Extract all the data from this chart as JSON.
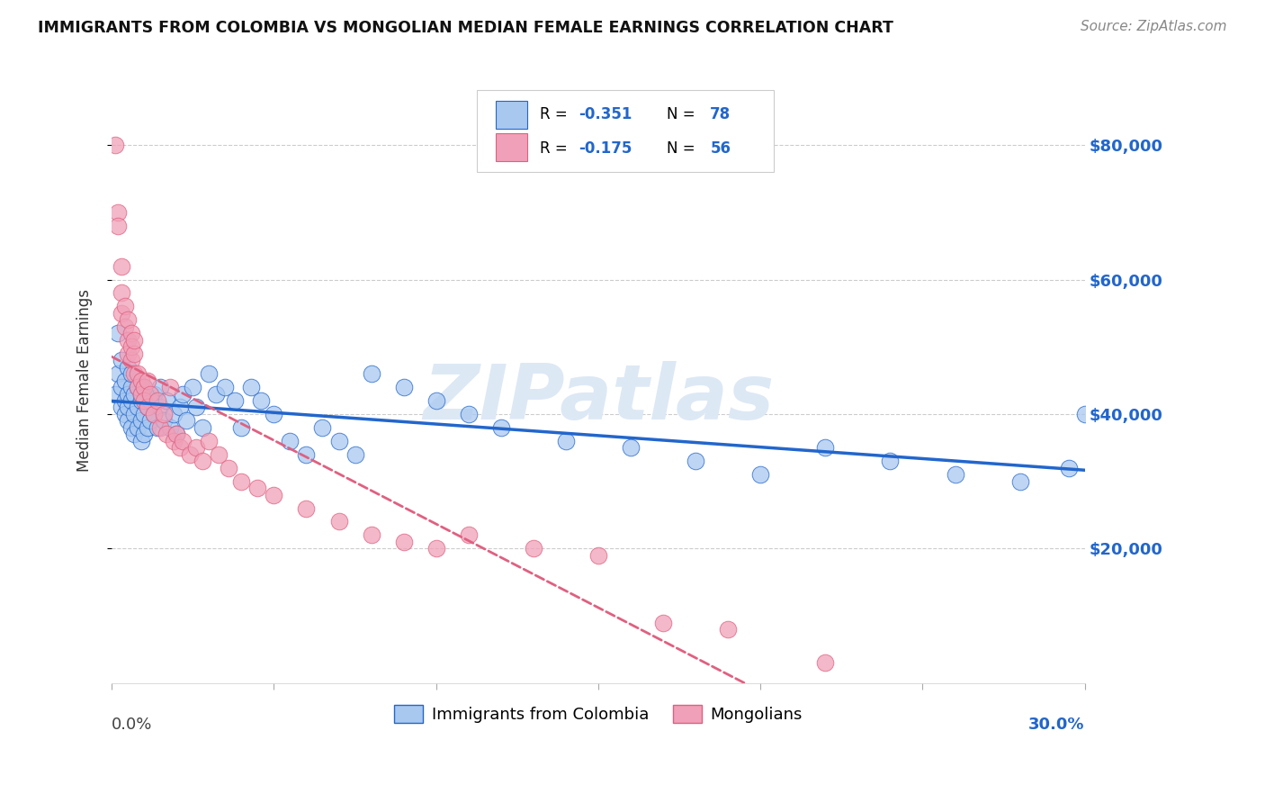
{
  "title": "IMMIGRANTS FROM COLOMBIA VS MONGOLIAN MEDIAN FEMALE EARNINGS CORRELATION CHART",
  "source": "Source: ZipAtlas.com",
  "ylabel": "Median Female Earnings",
  "yticks": [
    20000,
    40000,
    60000,
    80000
  ],
  "ytick_labels": [
    "$20,000",
    "$40,000",
    "$60,000",
    "$80,000"
  ],
  "xlim": [
    0.0,
    0.3
  ],
  "ylim": [
    0,
    90000
  ],
  "legend_label1": "Immigrants from Colombia",
  "legend_label2": "Mongolians",
  "R1": "-0.351",
  "N1": "78",
  "R2": "-0.175",
  "N2": "56",
  "color_colombia": "#a8c8f0",
  "color_mongolia": "#f0a0b8",
  "trendline_color_colombia": "#2266cc",
  "trendline_color_mongolia": "#e06080",
  "watermark": "ZIPatlas",
  "colombia_x": [
    0.001,
    0.002,
    0.002,
    0.003,
    0.003,
    0.003,
    0.004,
    0.004,
    0.004,
    0.005,
    0.005,
    0.005,
    0.005,
    0.006,
    0.006,
    0.006,
    0.006,
    0.007,
    0.007,
    0.007,
    0.008,
    0.008,
    0.008,
    0.009,
    0.009,
    0.009,
    0.009,
    0.01,
    0.01,
    0.01,
    0.011,
    0.011,
    0.012,
    0.012,
    0.013,
    0.013,
    0.014,
    0.015,
    0.015,
    0.016,
    0.017,
    0.018,
    0.019,
    0.02,
    0.021,
    0.022,
    0.023,
    0.025,
    0.026,
    0.028,
    0.03,
    0.032,
    0.035,
    0.038,
    0.04,
    0.043,
    0.046,
    0.05,
    0.055,
    0.06,
    0.065,
    0.07,
    0.075,
    0.08,
    0.09,
    0.1,
    0.11,
    0.12,
    0.14,
    0.16,
    0.18,
    0.2,
    0.22,
    0.24,
    0.26,
    0.28,
    0.295,
    0.3
  ],
  "colombia_y": [
    43000,
    46000,
    52000,
    41000,
    44000,
    48000,
    42000,
    45000,
    40000,
    43000,
    47000,
    39000,
    41000,
    44000,
    38000,
    42000,
    46000,
    43000,
    40000,
    37000,
    41000,
    38000,
    44000,
    42000,
    39000,
    36000,
    43000,
    40000,
    37000,
    44000,
    41000,
    38000,
    42000,
    39000,
    43000,
    40000,
    38000,
    44000,
    41000,
    39000,
    42000,
    38000,
    40000,
    37000,
    41000,
    43000,
    39000,
    44000,
    41000,
    38000,
    46000,
    43000,
    44000,
    42000,
    38000,
    44000,
    42000,
    40000,
    36000,
    34000,
    38000,
    36000,
    34000,
    46000,
    44000,
    42000,
    40000,
    38000,
    36000,
    35000,
    33000,
    31000,
    35000,
    33000,
    31000,
    30000,
    32000,
    40000
  ],
  "mongolia_x": [
    0.001,
    0.002,
    0.002,
    0.003,
    0.003,
    0.003,
    0.004,
    0.004,
    0.005,
    0.005,
    0.005,
    0.006,
    0.006,
    0.006,
    0.007,
    0.007,
    0.007,
    0.008,
    0.008,
    0.009,
    0.009,
    0.01,
    0.01,
    0.011,
    0.011,
    0.012,
    0.013,
    0.014,
    0.015,
    0.016,
    0.017,
    0.018,
    0.019,
    0.02,
    0.021,
    0.022,
    0.024,
    0.026,
    0.028,
    0.03,
    0.033,
    0.036,
    0.04,
    0.045,
    0.05,
    0.06,
    0.07,
    0.08,
    0.09,
    0.1,
    0.11,
    0.13,
    0.15,
    0.17,
    0.19,
    0.22
  ],
  "mongolia_y": [
    80000,
    70000,
    68000,
    62000,
    58000,
    55000,
    56000,
    53000,
    54000,
    51000,
    49000,
    52000,
    48000,
    50000,
    49000,
    46000,
    51000,
    46000,
    44000,
    45000,
    43000,
    44000,
    42000,
    45000,
    41000,
    43000,
    40000,
    42000,
    38000,
    40000,
    37000,
    44000,
    36000,
    37000,
    35000,
    36000,
    34000,
    35000,
    33000,
    36000,
    34000,
    32000,
    30000,
    29000,
    28000,
    26000,
    24000,
    22000,
    21000,
    20000,
    22000,
    20000,
    19000,
    9000,
    8000,
    3000
  ]
}
